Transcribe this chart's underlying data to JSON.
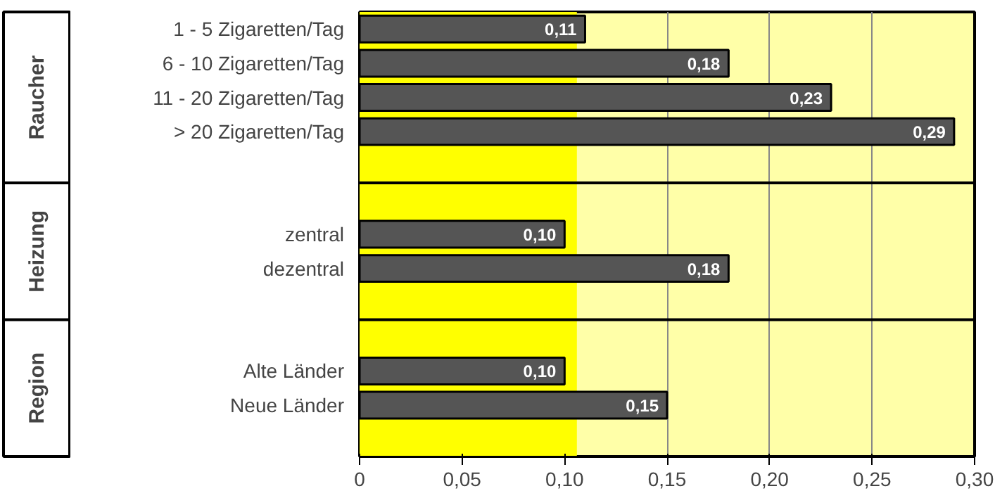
{
  "chart_data": {
    "type": "bar",
    "orientation": "horizontal",
    "categories": [
      "1 - 5 Zigaretten/Tag",
      "6 - 10 Zigaretten/Tag",
      "11 - 20 Zigaretten/Tag",
      "> 20 Zigaretten/Tag",
      null,
      null,
      "zentral",
      "dezentral",
      null,
      null,
      "Alte Länder",
      "Neue Länder",
      null
    ],
    "values": [
      0.11,
      0.18,
      0.23,
      0.29,
      null,
      null,
      0.1,
      0.18,
      null,
      null,
      0.1,
      0.15,
      null
    ],
    "value_labels": [
      "0,11",
      "0,18",
      "0,23",
      "0,29",
      null,
      null,
      "0,10",
      "0,18",
      null,
      null,
      "0,10",
      "0,15",
      null
    ],
    "color": "#555555",
    "annotations": [
      "Raucher",
      "Heizung",
      "Region"
    ],
    "bands": [
      {
        "axis": "x",
        "from": 0,
        "to": 0.106,
        "color": "#ffff00"
      }
    ],
    "xlim": [
      0,
      0.3
    ],
    "xticks": [
      0,
      {
        "value": 0.05,
        "label": "0,05"
      },
      {
        "value": 0.1,
        "label": "0,10"
      },
      {
        "value": 0.15,
        "label": "0,15"
      },
      {
        "value": 0.2,
        "label": "0,20"
      },
      {
        "value": 0.25,
        "label": "0,25"
      },
      {
        "value": 0.3,
        "label": "0,30"
      }
    ],
    "grid": "x"
  }
}
